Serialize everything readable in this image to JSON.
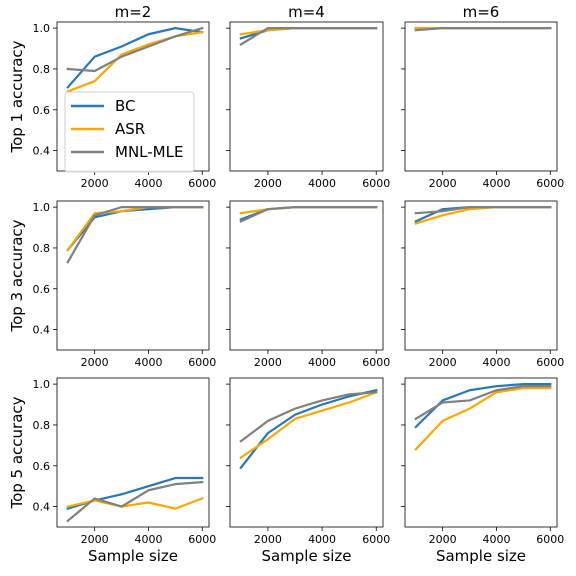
{
  "chart_data": {
    "type": "line",
    "layout": "3x3 grid of line charts",
    "column_titles": [
      "m=2",
      "m=4",
      "m=6"
    ],
    "row_ylabels": [
      "Top 1 accuracy",
      "Top 3 accuracy",
      "Top 5 accuracy"
    ],
    "xlabel": "Sample size",
    "x": [
      1000,
      2000,
      3000,
      4000,
      5000,
      6000
    ],
    "xticks": [
      2000,
      4000,
      6000
    ],
    "yticks": [
      0.4,
      0.6,
      0.8,
      1.0
    ],
    "row_ylims": [
      [
        0.3,
        1.03
      ],
      [
        0.3,
        1.03
      ],
      [
        0.3,
        1.03
      ]
    ],
    "legend": {
      "placement": "lower-right of top-left panel",
      "entries": [
        "BC",
        "ASR",
        "MNL-MLE"
      ]
    },
    "colors": {
      "BC": "#2878b5",
      "ASR": "#f9a800",
      "MNL-MLE": "#808080"
    },
    "panels": [
      {
        "row": 0,
        "col": 0,
        "series": [
          {
            "name": "BC",
            "values": [
              0.71,
              0.86,
              0.91,
              0.97,
              1.0,
              0.98
            ]
          },
          {
            "name": "ASR",
            "values": [
              0.69,
              0.74,
              0.87,
              0.92,
              0.96,
              0.98
            ]
          },
          {
            "name": "MNL-MLE",
            "values": [
              0.8,
              0.79,
              0.86,
              0.91,
              0.96,
              1.0
            ]
          }
        ]
      },
      {
        "row": 0,
        "col": 1,
        "series": [
          {
            "name": "BC",
            "values": [
              0.95,
              0.99,
              1.0,
              1.0,
              1.0,
              1.0
            ]
          },
          {
            "name": "ASR",
            "values": [
              0.97,
              0.99,
              1.0,
              1.0,
              1.0,
              1.0
            ]
          },
          {
            "name": "MNL-MLE",
            "values": [
              0.92,
              1.0,
              1.0,
              1.0,
              1.0,
              1.0
            ]
          }
        ]
      },
      {
        "row": 0,
        "col": 2,
        "series": [
          {
            "name": "BC",
            "values": [
              1.0,
              1.0,
              1.0,
              1.0,
              1.0,
              1.0
            ]
          },
          {
            "name": "ASR",
            "values": [
              1.0,
              1.0,
              1.0,
              1.0,
              1.0,
              1.0
            ]
          },
          {
            "name": "MNL-MLE",
            "values": [
              0.99,
              1.0,
              1.0,
              1.0,
              1.0,
              1.0
            ]
          }
        ]
      },
      {
        "row": 1,
        "col": 0,
        "series": [
          {
            "name": "BC",
            "values": [
              0.79,
              0.95,
              0.98,
              0.99,
              1.0,
              1.0
            ]
          },
          {
            "name": "ASR",
            "values": [
              0.79,
              0.97,
              0.98,
              1.0,
              1.0,
              1.0
            ]
          },
          {
            "name": "MNL-MLE",
            "values": [
              0.73,
              0.96,
              1.0,
              1.0,
              1.0,
              1.0
            ]
          }
        ]
      },
      {
        "row": 1,
        "col": 1,
        "series": [
          {
            "name": "BC",
            "values": [
              0.94,
              0.99,
              1.0,
              1.0,
              1.0,
              1.0
            ]
          },
          {
            "name": "ASR",
            "values": [
              0.97,
              0.99,
              1.0,
              1.0,
              1.0,
              1.0
            ]
          },
          {
            "name": "MNL-MLE",
            "values": [
              0.93,
              0.99,
              1.0,
              1.0,
              1.0,
              1.0
            ]
          }
        ]
      },
      {
        "row": 1,
        "col": 2,
        "series": [
          {
            "name": "BC",
            "values": [
              0.93,
              0.99,
              1.0,
              1.0,
              1.0,
              1.0
            ]
          },
          {
            "name": "ASR",
            "values": [
              0.92,
              0.96,
              0.99,
              1.0,
              1.0,
              1.0
            ]
          },
          {
            "name": "MNL-MLE",
            "values": [
              0.97,
              0.98,
              1.0,
              1.0,
              1.0,
              1.0
            ]
          }
        ]
      },
      {
        "row": 2,
        "col": 0,
        "series": [
          {
            "name": "BC",
            "values": [
              0.39,
              0.43,
              0.46,
              0.5,
              0.54,
              0.54
            ]
          },
          {
            "name": "ASR",
            "values": [
              0.4,
              0.43,
              0.4,
              0.42,
              0.39,
              0.44
            ]
          },
          {
            "name": "MNL-MLE",
            "values": [
              0.33,
              0.44,
              0.4,
              0.48,
              0.51,
              0.52
            ]
          }
        ]
      },
      {
        "row": 2,
        "col": 1,
        "series": [
          {
            "name": "BC",
            "values": [
              0.59,
              0.76,
              0.85,
              0.9,
              0.94,
              0.97
            ]
          },
          {
            "name": "ASR",
            "values": [
              0.64,
              0.73,
              0.83,
              0.87,
              0.91,
              0.96
            ]
          },
          {
            "name": "MNL-MLE",
            "values": [
              0.72,
              0.82,
              0.88,
              0.92,
              0.95,
              0.96
            ]
          }
        ]
      },
      {
        "row": 2,
        "col": 2,
        "series": [
          {
            "name": "BC",
            "values": [
              0.79,
              0.92,
              0.97,
              0.99,
              1.0,
              1.0
            ]
          },
          {
            "name": "ASR",
            "values": [
              0.68,
              0.82,
              0.88,
              0.96,
              0.98,
              0.98
            ]
          },
          {
            "name": "MNL-MLE",
            "values": [
              0.83,
              0.91,
              0.92,
              0.97,
              0.99,
              0.99
            ]
          }
        ]
      }
    ]
  }
}
